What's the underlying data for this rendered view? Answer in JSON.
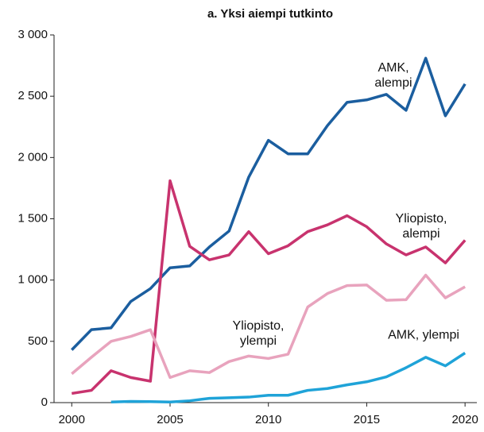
{
  "chart_data": {
    "type": "line",
    "title": "a. Yksi aiempi tutkinto",
    "x": [
      2000,
      2001,
      2002,
      2003,
      2004,
      2005,
      2006,
      2007,
      2008,
      2009,
      2010,
      2011,
      2012,
      2013,
      2014,
      2015,
      2016,
      2017,
      2018,
      2019,
      2020
    ],
    "xlim": [
      1999.1,
      2020.6
    ],
    "xticks": [
      2000,
      2005,
      2010,
      2015,
      2020
    ],
    "ylim": [
      0,
      3000
    ],
    "yticks": [
      0,
      500,
      {
        "value": 1000,
        "label": "1 000"
      },
      {
        "value": 1500,
        "label": "1 500"
      },
      {
        "value": 2000,
        "label": "2 000"
      },
      {
        "value": 2500,
        "label": "2 500"
      },
      {
        "value": 3000,
        "label": "3 000"
      }
    ],
    "series": [
      {
        "name": "AMK, alempi",
        "color": "#1b5e9f",
        "values": [
          430,
          595,
          610,
          825,
          930,
          1100,
          1115,
          1270,
          1400,
          1840,
          2140,
          2030,
          2030,
          2260,
          2450,
          2470,
          2515,
          2385,
          2810,
          2340,
          2600
        ]
      },
      {
        "name": "Yliopisto, alempi",
        "color": "#c8336e",
        "values": [
          75,
          100,
          260,
          205,
          175,
          1810,
          1275,
          1165,
          1205,
          1395,
          1215,
          1280,
          1395,
          1450,
          1525,
          1435,
          1295,
          1205,
          1270,
          1140,
          1325
        ]
      },
      {
        "name": "Yliopisto, ylempi",
        "color": "#e8a3bd",
        "values": [
          235,
          370,
          500,
          540,
          595,
          205,
          260,
          245,
          335,
          380,
          360,
          395,
          780,
          890,
          955,
          960,
          835,
          840,
          1040,
          855,
          945
        ]
      },
      {
        "name": "AMK, ylempi",
        "color": "#1fa3d8",
        "values": [
          null,
          null,
          5,
          10,
          8,
          5,
          15,
          35,
          40,
          45,
          60,
          60,
          100,
          115,
          145,
          170,
          210,
          285,
          370,
          300,
          405
        ]
      }
    ]
  }
}
